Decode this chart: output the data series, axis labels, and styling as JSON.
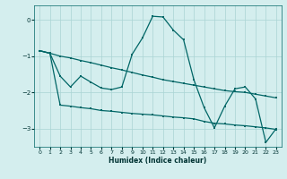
{
  "xlabel": "Humidex (Indice chaleur)",
  "bg_color": "#d4eeee",
  "line_color": "#006666",
  "grid_color": "#aad4d4",
  "x_values": [
    0,
    1,
    2,
    3,
    4,
    5,
    6,
    7,
    8,
    9,
    10,
    11,
    12,
    13,
    14,
    15,
    16,
    17,
    18,
    19,
    20,
    21,
    22,
    23
  ],
  "line1_y": [
    -0.85,
    -0.92,
    -1.0,
    -1.05,
    -1.12,
    -1.18,
    -1.25,
    -1.32,
    -1.38,
    -1.45,
    -1.52,
    -1.58,
    -1.65,
    -1.7,
    -1.75,
    -1.8,
    -1.85,
    -1.9,
    -1.95,
    -1.98,
    -2.0,
    -2.05,
    -2.1,
    -2.15
  ],
  "line2_y": [
    -0.85,
    -0.92,
    -1.55,
    -1.85,
    -1.55,
    -1.72,
    -1.88,
    -1.92,
    -1.85,
    -0.95,
    -0.5,
    0.1,
    0.08,
    -0.28,
    -0.55,
    -1.65,
    -2.42,
    -2.98,
    -2.38,
    -1.9,
    -1.85,
    -2.18,
    -3.38,
    -3.0
  ],
  "line3_y": [
    -0.85,
    -0.92,
    -2.35,
    -2.38,
    -2.42,
    -2.45,
    -2.5,
    -2.52,
    -2.55,
    -2.58,
    -2.6,
    -2.62,
    -2.65,
    -2.68,
    -2.7,
    -2.73,
    -2.8,
    -2.85,
    -2.87,
    -2.9,
    -2.92,
    -2.95,
    -2.98,
    -3.02
  ],
  "ylim": [
    -3.5,
    0.4
  ],
  "xlim": [
    -0.5,
    23.5
  ],
  "yticks": [
    0,
    -1,
    -2,
    -3
  ],
  "xticks": [
    0,
    1,
    2,
    3,
    4,
    5,
    6,
    7,
    8,
    9,
    10,
    11,
    12,
    13,
    14,
    15,
    16,
    17,
    18,
    19,
    20,
    21,
    22,
    23
  ]
}
